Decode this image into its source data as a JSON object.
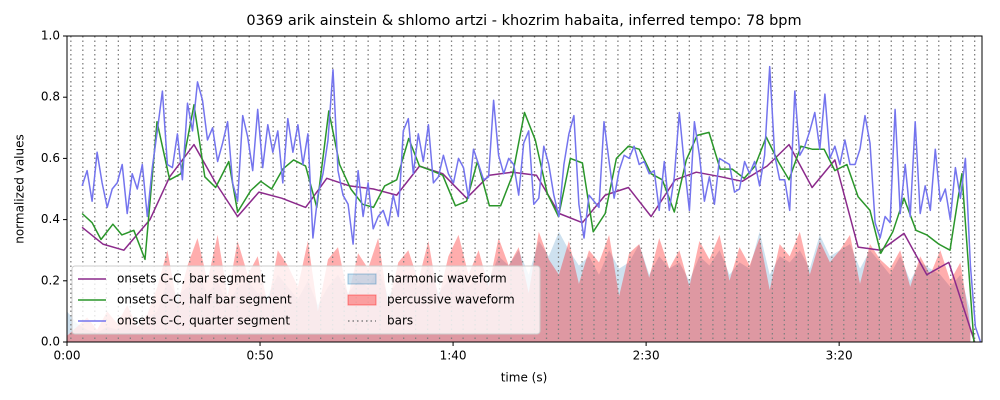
{
  "chart_data": {
    "type": "line",
    "title": "0369 arik ainstein & shlomo artzi - khozrim habaita, inferred tempo: 78 bpm",
    "xlabel": "time (s)",
    "ylabel": "normalized values",
    "xlim": [
      0,
      237
    ],
    "ylim": [
      0,
      1
    ],
    "xticks": [
      {
        "value": 0,
        "label": "0:00"
      },
      {
        "value": 50,
        "label": "0:50"
      },
      {
        "value": 100,
        "label": "1:40"
      },
      {
        "value": 150,
        "label": "2:30"
      },
      {
        "value": 200,
        "label": "3:20"
      }
    ],
    "yticks": [
      {
        "value": 0,
        "label": "0.0"
      },
      0.2,
      0.4,
      0.6,
      0.8,
      {
        "value": 1,
        "label": "1.0"
      }
    ],
    "legend": "lower left",
    "areas": {
      "x": [
        0,
        2.6,
        5.2,
        7.8,
        10.4,
        13,
        15.6,
        18.2,
        20.8,
        23.4,
        26,
        28.6,
        31.2,
        33.8,
        36.4,
        39,
        41.6,
        44.2,
        46.8,
        49.4,
        52,
        54.6,
        57.2,
        59.8,
        62.4,
        65,
        67.6,
        70.2,
        72.8,
        75.4,
        78,
        80.6,
        83.2,
        85.8,
        88.4,
        91,
        93.6,
        96.2,
        98.8,
        101.4,
        104,
        106.6,
        109.2,
        111.8,
        114.4,
        117,
        119.6,
        122.2,
        124.8,
        127.4,
        130,
        132.6,
        135.2,
        137.8,
        140.4,
        143,
        145.6,
        148.2,
        150.8,
        153.4,
        156,
        158.6,
        161.2,
        163.8,
        166.4,
        169,
        171.6,
        174.2,
        176.8,
        179.4,
        182,
        184.6,
        187.2,
        189.8,
        192.4,
        195,
        197.6,
        200.2,
        202.8,
        205.4,
        208,
        210.6,
        213.2,
        215.8,
        218.4,
        221,
        223.6,
        226.2,
        228.8,
        231.4,
        234
      ],
      "series": [
        {
          "name": "harmonic waveform",
          "color": "#1f77b4",
          "values": [
            0.1,
            0.06,
            0.04,
            0.03,
            0.05,
            0.04,
            0.06,
            0.05,
            0.08,
            0.1,
            0.2,
            0.15,
            0.18,
            0.22,
            0.16,
            0.2,
            0.12,
            0.18,
            0.2,
            0.16,
            0.15,
            0.22,
            0.18,
            0.14,
            0.2,
            0.12,
            0.18,
            0.22,
            0.16,
            0.2,
            0.18,
            0.24,
            0.15,
            0.2,
            0.22,
            0.18,
            0.25,
            0.16,
            0.2,
            0.24,
            0.18,
            0.22,
            0.2,
            0.28,
            0.25,
            0.3,
            0.22,
            0.33,
            0.28,
            0.36,
            0.3,
            0.25,
            0.28,
            0.22,
            0.3,
            0.24,
            0.26,
            0.32,
            0.22,
            0.28,
            0.24,
            0.26,
            0.2,
            0.28,
            0.25,
            0.3,
            0.22,
            0.26,
            0.24,
            0.36,
            0.22,
            0.28,
            0.26,
            0.3,
            0.24,
            0.35,
            0.28,
            0.3,
            0.32,
            0.24,
            0.3,
            0.26,
            0.22,
            0.28,
            0.2,
            0.26,
            0.24,
            0.22,
            0.18,
            0.22,
            0.1
          ]
        },
        {
          "name": "percussive waveform",
          "color": "#ff0000",
          "values": [
            0.02,
            0.05,
            0.08,
            0.04,
            0.1,
            0.06,
            0.12,
            0.05,
            0.09,
            0.18,
            0.3,
            0.12,
            0.25,
            0.34,
            0.2,
            0.35,
            0.15,
            0.33,
            0.22,
            0.28,
            0.12,
            0.3,
            0.25,
            0.18,
            0.33,
            0.1,
            0.27,
            0.31,
            0.15,
            0.29,
            0.24,
            0.34,
            0.12,
            0.26,
            0.3,
            0.2,
            0.33,
            0.14,
            0.28,
            0.35,
            0.22,
            0.3,
            0.18,
            0.34,
            0.25,
            0.31,
            0.16,
            0.36,
            0.27,
            0.22,
            0.33,
            0.19,
            0.3,
            0.26,
            0.35,
            0.15,
            0.29,
            0.32,
            0.21,
            0.34,
            0.24,
            0.3,
            0.18,
            0.33,
            0.27,
            0.35,
            0.2,
            0.31,
            0.25,
            0.34,
            0.17,
            0.32,
            0.28,
            0.36,
            0.22,
            0.33,
            0.26,
            0.3,
            0.35,
            0.19,
            0.32,
            0.27,
            0.24,
            0.3,
            0.18,
            0.28,
            0.22,
            0.3,
            0.2,
            0.26,
            0.05
          ]
        }
      ]
    },
    "bars": {
      "name": "bars",
      "color": "#808080",
      "x": [
        1.0,
        4.1,
        7.2,
        10.2,
        13.3,
        16.4,
        19.5,
        22.6,
        25.6,
        28.7,
        31.8,
        34.9,
        38.0,
        41.0,
        44.1,
        47.2,
        50.3,
        53.4,
        56.4,
        59.5,
        62.6,
        65.7,
        68.8,
        71.8,
        74.9,
        78.0,
        81.1,
        84.2,
        87.2,
        90.3,
        93.4,
        96.5,
        99.6,
        102.6,
        105.7,
        108.8,
        111.9,
        115.0,
        118.0,
        121.1,
        124.2,
        127.3,
        130.4,
        133.4,
        136.5,
        139.6,
        142.7,
        145.8,
        148.8,
        151.9,
        155.0,
        158.1,
        161.2,
        164.2,
        167.3,
        170.4,
        173.5,
        176.6,
        179.6,
        182.7,
        185.8,
        188.9,
        192.0,
        195.0,
        198.1,
        201.2,
        204.3,
        207.4,
        210.4,
        213.5,
        216.6,
        219.7,
        222.8,
        225.8,
        228.9,
        232.0,
        235.1
      ]
    },
    "series": [
      {
        "name": "onsets C-C, bar segment",
        "color": "#8b2a8b",
        "x": [
          3.9,
          9.3,
          14.7,
          21.5,
          26.6,
          32.9,
          38.5,
          44.2,
          49.7,
          55.6,
          61.8,
          67.3,
          73.2,
          79.4,
          85.4,
          91.3,
          97.3,
          103.5,
          109.4,
          115.4,
          121.6,
          127.5,
          133.5,
          139.4,
          145.4,
          151.3,
          157.5,
          163.0,
          169.4,
          174.9,
          181.3,
          187.0,
          193.0,
          198.9,
          204.9,
          210.8,
          216.8,
          222.7,
          228.4,
          235.1
        ],
        "values": [
          0.375,
          0.32,
          0.3,
          0.4,
          0.54,
          0.645,
          0.52,
          0.41,
          0.49,
          0.47,
          0.44,
          0.535,
          0.51,
          0.5,
          0.48,
          0.575,
          0.55,
          0.47,
          0.545,
          0.555,
          0.545,
          0.42,
          0.39,
          0.48,
          0.505,
          0.41,
          0.53,
          0.555,
          0.54,
          0.525,
          0.575,
          0.645,
          0.505,
          0.595,
          0.31,
          0.3,
          0.355,
          0.22,
          0.26,
          0.0
        ]
      },
      {
        "name": "onsets C-C, half bar segment",
        "color": "#2a962a",
        "x": [
          3.9,
          6.5,
          8.8,
          11.9,
          14.2,
          17.3,
          20.2,
          23.3,
          26.6,
          29.5,
          32.9,
          35.7,
          38.5,
          41.9,
          44.2,
          47.6,
          50.2,
          53.0,
          55.9,
          58.7,
          61.8,
          64.7,
          67.8,
          70.6,
          73.5,
          76.6,
          79.4,
          82.3,
          85.4,
          88.5,
          91.3,
          94.4,
          97.3,
          100.6,
          103.5,
          106.3,
          109.4,
          112.3,
          115.4,
          118.5,
          121.3,
          124.4,
          127.3,
          130.4,
          133.5,
          136.3,
          139.4,
          142.3,
          145.4,
          148.2,
          151.3,
          154.2,
          157.3,
          160.4,
          163.2,
          166.3,
          169.2,
          172.3,
          175.4,
          178.2,
          181.1,
          184.2,
          187.0,
          190.1,
          193.0,
          196.1,
          198.9,
          202.0,
          204.9,
          208.0,
          210.8,
          213.9,
          216.8,
          219.9,
          222.7,
          225.8,
          228.7,
          231.8,
          234.9
        ],
        "values": [
          0.42,
          0.39,
          0.335,
          0.385,
          0.35,
          0.365,
          0.27,
          0.72,
          0.53,
          0.55,
          0.775,
          0.54,
          0.505,
          0.59,
          0.425,
          0.495,
          0.525,
          0.5,
          0.565,
          0.595,
          0.575,
          0.44,
          0.755,
          0.58,
          0.5,
          0.45,
          0.44,
          0.51,
          0.53,
          0.665,
          0.575,
          0.56,
          0.545,
          0.445,
          0.46,
          0.59,
          0.445,
          0.445,
          0.545,
          0.75,
          0.66,
          0.485,
          0.41,
          0.6,
          0.585,
          0.36,
          0.42,
          0.6,
          0.64,
          0.63,
          0.55,
          0.53,
          0.425,
          0.595,
          0.675,
          0.685,
          0.565,
          0.565,
          0.535,
          0.575,
          0.67,
          0.59,
          0.53,
          0.64,
          0.63,
          0.63,
          0.56,
          0.58,
          0.475,
          0.43,
          0.29,
          0.36,
          0.47,
          0.365,
          0.35,
          0.32,
          0.3,
          0.55,
          0.0
        ]
      },
      {
        "name": "onsets C-C, quarter segment",
        "color": "#7474ee",
        "x": [
          3.9,
          5.2,
          6.5,
          7.8,
          9.1,
          10.4,
          11.7,
          13,
          14.3,
          15.6,
          16.9,
          18.2,
          19.5,
          20.8,
          22.1,
          23.4,
          24.7,
          26,
          27.3,
          28.6,
          29.9,
          31.2,
          32.5,
          33.8,
          35.1,
          36.4,
          37.7,
          39,
          40.3,
          41.6,
          42.9,
          44.2,
          45.5,
          46.8,
          48.1,
          49.4,
          50.7,
          52,
          53.3,
          54.6,
          55.9,
          57.2,
          58.5,
          59.8,
          61.1,
          62.4,
          63.7,
          65,
          66.3,
          67.6,
          68.9,
          70.2,
          71.5,
          72.8,
          74.1,
          75.4,
          76.7,
          78,
          79.3,
          80.6,
          81.9,
          83.2,
          84.5,
          85.8,
          87.1,
          88.4,
          89.7,
          91,
          92.3,
          93.6,
          94.9,
          96.2,
          97.5,
          98.8,
          100.1,
          101.4,
          102.7,
          104,
          105.3,
          106.6,
          107.9,
          109.2,
          110.5,
          111.8,
          113.1,
          114.4,
          115.7,
          117,
          118.3,
          119.6,
          120.9,
          122.2,
          123.5,
          124.8,
          126.1,
          127.4,
          128.7,
          130,
          131.3,
          132.6,
          133.9,
          135.2,
          136.5,
          137.8,
          139.1,
          140.4,
          141.7,
          143,
          144.3,
          145.6,
          146.9,
          148.2,
          149.5,
          150.8,
          152.1,
          153.4,
          154.7,
          156,
          157.3,
          158.6,
          159.9,
          161.2,
          162.5,
          163.8,
          165.1,
          166.4,
          167.7,
          169,
          170.3,
          171.6,
          172.9,
          174.2,
          175.5,
          176.8,
          178.1,
          179.4,
          180.7,
          182,
          183.3,
          184.6,
          185.9,
          187.2,
          188.5,
          189.8,
          191.1,
          192.4,
          193.7,
          195,
          196.3,
          197.6,
          198.9,
          200.2,
          201.5,
          202.8,
          204.1,
          205.4,
          206.7,
          208,
          209.3,
          210.6,
          211.9,
          213.2,
          214.5,
          215.8,
          217.1,
          218.4,
          219.7,
          221,
          222.3,
          223.6,
          224.9,
          226.2,
          227.5,
          228.8,
          230.1,
          231.4,
          232.7,
          234,
          235.3,
          236.6
        ],
        "values": [
          0.51,
          0.56,
          0.46,
          0.62,
          0.52,
          0.44,
          0.5,
          0.52,
          0.58,
          0.42,
          0.55,
          0.5,
          0.58,
          0.41,
          0.57,
          0.69,
          0.82,
          0.58,
          0.57,
          0.68,
          0.53,
          0.78,
          0.69,
          0.85,
          0.79,
          0.66,
          0.7,
          0.59,
          0.65,
          0.72,
          0.52,
          0.46,
          0.74,
          0.67,
          0.56,
          0.76,
          0.57,
          0.71,
          0.62,
          0.69,
          0.52,
          0.73,
          0.62,
          0.71,
          0.58,
          0.68,
          0.34,
          0.48,
          0.55,
          0.66,
          0.89,
          0.56,
          0.48,
          0.45,
          0.32,
          0.56,
          0.41,
          0.52,
          0.37,
          0.41,
          0.43,
          0.38,
          0.48,
          0.41,
          0.69,
          0.73,
          0.55,
          0.68,
          0.59,
          0.71,
          0.52,
          0.54,
          0.61,
          0.55,
          0.52,
          0.6,
          0.57,
          0.47,
          0.63,
          0.58,
          0.53,
          0.54,
          0.79,
          0.61,
          0.55,
          0.6,
          0.58,
          0.48,
          0.65,
          0.69,
          0.45,
          0.47,
          0.64,
          0.58,
          0.48,
          0.41,
          0.58,
          0.68,
          0.74,
          0.45,
          0.34,
          0.48,
          0.46,
          0.44,
          0.72,
          0.59,
          0.47,
          0.56,
          0.61,
          0.6,
          0.64,
          0.58,
          0.59,
          0.55,
          0.56,
          0.43,
          0.59,
          0.43,
          0.54,
          0.75,
          0.58,
          0.43,
          0.72,
          0.61,
          0.46,
          0.54,
          0.45,
          0.6,
          0.59,
          0.58,
          0.49,
          0.5,
          0.59,
          0.55,
          0.59,
          0.51,
          0.61,
          0.9,
          0.61,
          0.53,
          0.53,
          0.43,
          0.82,
          0.61,
          0.64,
          0.69,
          0.75,
          0.63,
          0.81,
          0.6,
          0.64,
          0.58,
          0.66,
          0.58,
          0.58,
          0.63,
          0.74,
          0.65,
          0.39,
          0.34,
          0.41,
          0.39,
          0.76,
          0.42,
          0.58,
          0.41,
          0.72,
          0.42,
          0.51,
          0.43,
          0.63,
          0.46,
          0.5,
          0.4,
          0.57,
          0.47,
          0.6,
          0.25,
          0.05,
          0.0
        ]
      }
    ]
  }
}
